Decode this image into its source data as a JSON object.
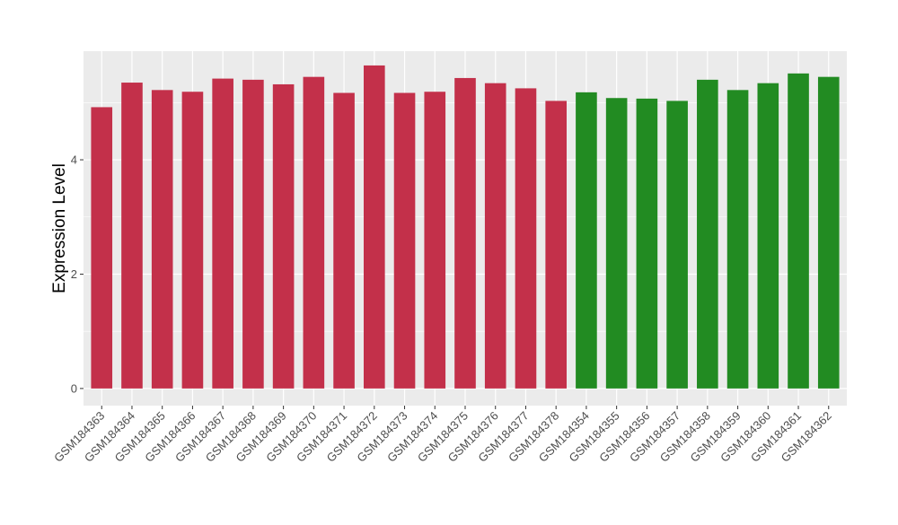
{
  "chart_data": {
    "type": "bar",
    "xlabel": "",
    "ylabel": "Expression Level",
    "ylim": [
      -0.3,
      5.9
    ],
    "yticks": [
      0,
      2,
      4
    ],
    "grid": true,
    "legend": "none",
    "panel_background": "#EBEBEB",
    "grid_color": "#FFFFFF",
    "categories": [
      "GSM184363",
      "GSM184364",
      "GSM184365",
      "GSM184366",
      "GSM184367",
      "GSM184368",
      "GSM184369",
      "GSM184370",
      "GSM184371",
      "GSM184372",
      "GSM184373",
      "GSM184374",
      "GSM184375",
      "GSM184376",
      "GSM184377",
      "GSM184378",
      "GSM184354",
      "GSM184355",
      "GSM184356",
      "GSM184357",
      "GSM184358",
      "GSM184359",
      "GSM184360",
      "GSM184361",
      "GSM184362"
    ],
    "values": [
      4.92,
      5.35,
      5.22,
      5.19,
      5.42,
      5.4,
      5.32,
      5.45,
      5.17,
      5.65,
      5.17,
      5.19,
      5.43,
      5.34,
      5.25,
      5.03,
      5.18,
      5.08,
      5.07,
      5.03,
      5.4,
      5.22,
      5.34,
      5.51,
      5.45
    ],
    "colors": [
      "#C3304A",
      "#C3304A",
      "#C3304A",
      "#C3304A",
      "#C3304A",
      "#C3304A",
      "#C3304A",
      "#C3304A",
      "#C3304A",
      "#C3304A",
      "#C3304A",
      "#C3304A",
      "#C3304A",
      "#C3304A",
      "#C3304A",
      "#C3304A",
      "#228B22",
      "#228B22",
      "#228B22",
      "#228B22",
      "#228B22",
      "#228B22",
      "#228B22",
      "#228B22",
      "#228B22"
    ]
  }
}
